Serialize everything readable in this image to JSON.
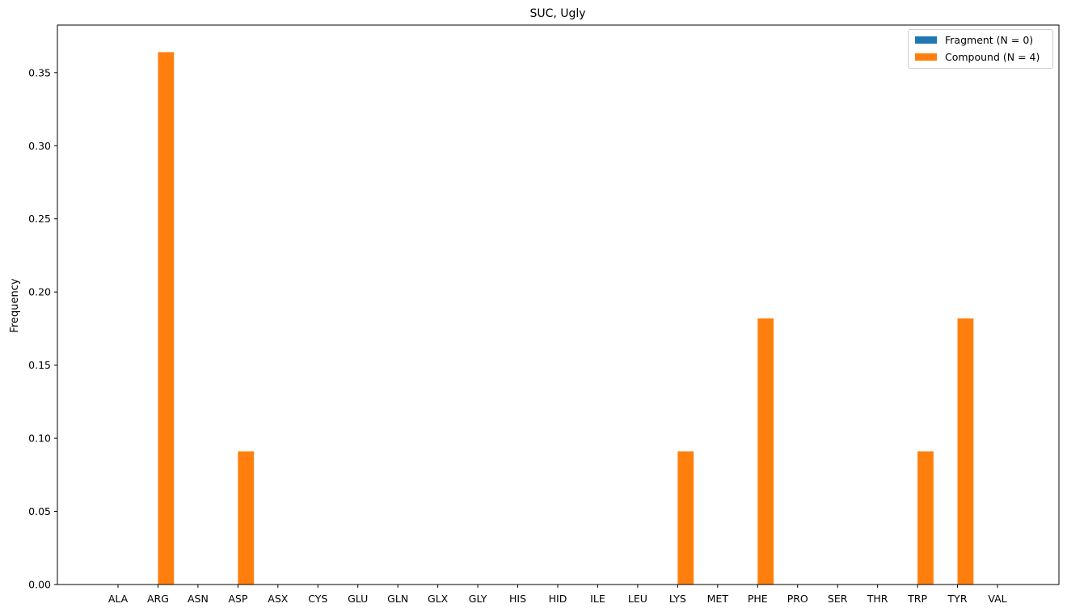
{
  "chart_data": {
    "type": "bar",
    "title": "SUC, Ugly",
    "xlabel": "",
    "ylabel": "Frequency",
    "ylim": [
      0,
      0.3825
    ],
    "yticks": [
      0.0,
      0.05,
      0.1,
      0.15,
      0.2,
      0.25,
      0.3,
      0.35
    ],
    "ytick_labels": [
      "0.00",
      "0.05",
      "0.10",
      "0.15",
      "0.20",
      "0.25",
      "0.30",
      "0.35"
    ],
    "grid": false,
    "legend_position": "top-right",
    "categories": [
      "ALA",
      "ARG",
      "ASN",
      "ASP",
      "ASX",
      "CYS",
      "GLU",
      "GLN",
      "GLX",
      "GLY",
      "HIS",
      "HID",
      "ILE",
      "LEU",
      "LYS",
      "MET",
      "PHE",
      "PRO",
      "SER",
      "THR",
      "TRP",
      "TYR",
      "VAL"
    ],
    "series": [
      {
        "name": "Fragment (N = 0)",
        "color": "#1f77b4",
        "values": [
          0,
          0,
          0,
          0,
          0,
          0,
          0,
          0,
          0,
          0,
          0,
          0,
          0,
          0,
          0,
          0,
          0,
          0,
          0,
          0,
          0,
          0,
          0
        ]
      },
      {
        "name": "Compound (N = 4)",
        "color": "#ff7f0e",
        "values": [
          0,
          0.364,
          0,
          0.091,
          0,
          0,
          0,
          0,
          0,
          0,
          0,
          0,
          0,
          0,
          0.091,
          0,
          0.182,
          0,
          0,
          0,
          0.091,
          0.182,
          0
        ]
      }
    ]
  }
}
